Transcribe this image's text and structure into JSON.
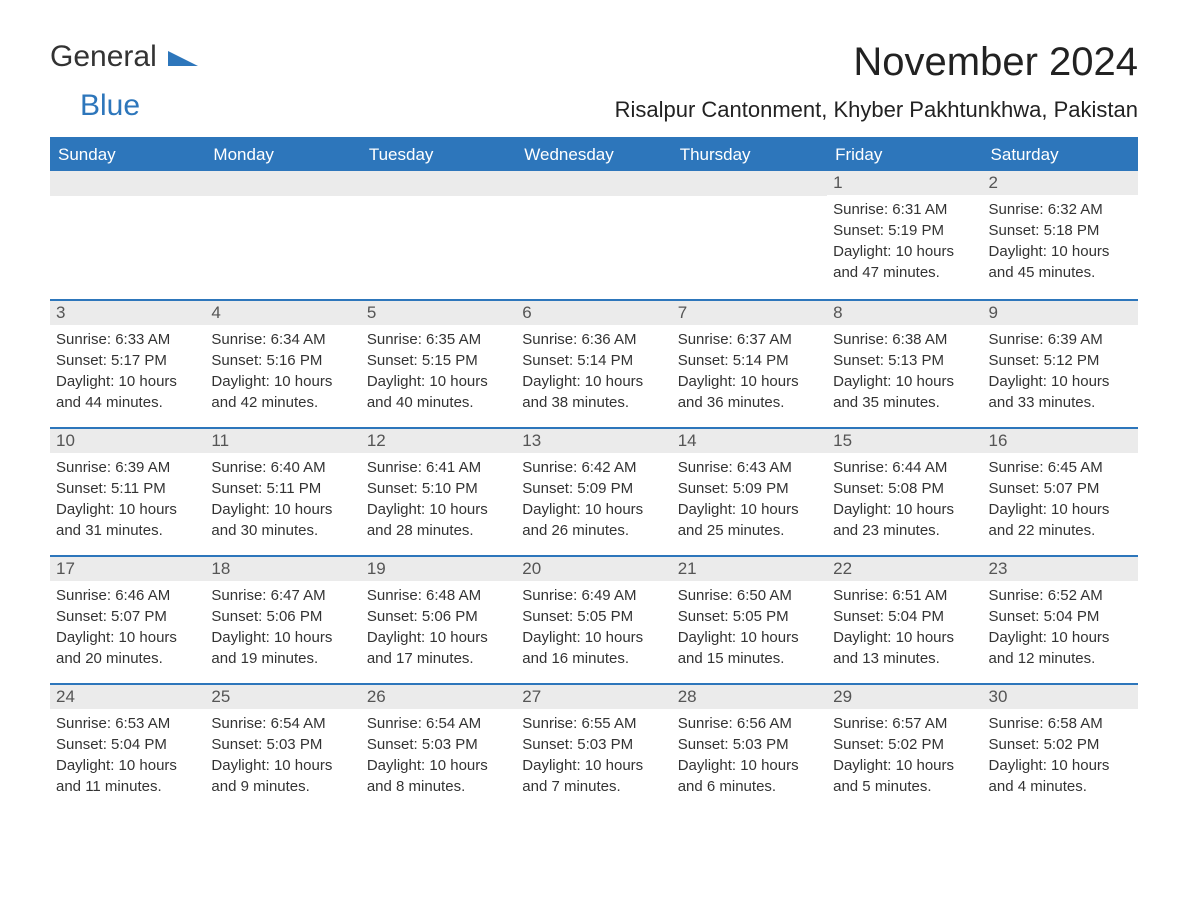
{
  "logo": {
    "text1": "General",
    "text2": "Blue",
    "shape_color": "#2d76bb"
  },
  "title": "November 2024",
  "location": "Risalpur Cantonment, Khyber Pakhtunkhwa, Pakistan",
  "colors": {
    "header_bg": "#2d76bb",
    "header_text": "#ffffff",
    "daynum_bg": "#ebebeb",
    "text": "#333333",
    "border": "#2d76bb"
  },
  "day_names": [
    "Sunday",
    "Monday",
    "Tuesday",
    "Wednesday",
    "Thursday",
    "Friday",
    "Saturday"
  ],
  "weeks": [
    [
      null,
      null,
      null,
      null,
      null,
      {
        "n": "1",
        "sunrise": "Sunrise: 6:31 AM",
        "sunset": "Sunset: 5:19 PM",
        "day1": "Daylight: 10 hours",
        "day2": "and 47 minutes."
      },
      {
        "n": "2",
        "sunrise": "Sunrise: 6:32 AM",
        "sunset": "Sunset: 5:18 PM",
        "day1": "Daylight: 10 hours",
        "day2": "and 45 minutes."
      }
    ],
    [
      {
        "n": "3",
        "sunrise": "Sunrise: 6:33 AM",
        "sunset": "Sunset: 5:17 PM",
        "day1": "Daylight: 10 hours",
        "day2": "and 44 minutes."
      },
      {
        "n": "4",
        "sunrise": "Sunrise: 6:34 AM",
        "sunset": "Sunset: 5:16 PM",
        "day1": "Daylight: 10 hours",
        "day2": "and 42 minutes."
      },
      {
        "n": "5",
        "sunrise": "Sunrise: 6:35 AM",
        "sunset": "Sunset: 5:15 PM",
        "day1": "Daylight: 10 hours",
        "day2": "and 40 minutes."
      },
      {
        "n": "6",
        "sunrise": "Sunrise: 6:36 AM",
        "sunset": "Sunset: 5:14 PM",
        "day1": "Daylight: 10 hours",
        "day2": "and 38 minutes."
      },
      {
        "n": "7",
        "sunrise": "Sunrise: 6:37 AM",
        "sunset": "Sunset: 5:14 PM",
        "day1": "Daylight: 10 hours",
        "day2": "and 36 minutes."
      },
      {
        "n": "8",
        "sunrise": "Sunrise: 6:38 AM",
        "sunset": "Sunset: 5:13 PM",
        "day1": "Daylight: 10 hours",
        "day2": "and 35 minutes."
      },
      {
        "n": "9",
        "sunrise": "Sunrise: 6:39 AM",
        "sunset": "Sunset: 5:12 PM",
        "day1": "Daylight: 10 hours",
        "day2": "and 33 minutes."
      }
    ],
    [
      {
        "n": "10",
        "sunrise": "Sunrise: 6:39 AM",
        "sunset": "Sunset: 5:11 PM",
        "day1": "Daylight: 10 hours",
        "day2": "and 31 minutes."
      },
      {
        "n": "11",
        "sunrise": "Sunrise: 6:40 AM",
        "sunset": "Sunset: 5:11 PM",
        "day1": "Daylight: 10 hours",
        "day2": "and 30 minutes."
      },
      {
        "n": "12",
        "sunrise": "Sunrise: 6:41 AM",
        "sunset": "Sunset: 5:10 PM",
        "day1": "Daylight: 10 hours",
        "day2": "and 28 minutes."
      },
      {
        "n": "13",
        "sunrise": "Sunrise: 6:42 AM",
        "sunset": "Sunset: 5:09 PM",
        "day1": "Daylight: 10 hours",
        "day2": "and 26 minutes."
      },
      {
        "n": "14",
        "sunrise": "Sunrise: 6:43 AM",
        "sunset": "Sunset: 5:09 PM",
        "day1": "Daylight: 10 hours",
        "day2": "and 25 minutes."
      },
      {
        "n": "15",
        "sunrise": "Sunrise: 6:44 AM",
        "sunset": "Sunset: 5:08 PM",
        "day1": "Daylight: 10 hours",
        "day2": "and 23 minutes."
      },
      {
        "n": "16",
        "sunrise": "Sunrise: 6:45 AM",
        "sunset": "Sunset: 5:07 PM",
        "day1": "Daylight: 10 hours",
        "day2": "and 22 minutes."
      }
    ],
    [
      {
        "n": "17",
        "sunrise": "Sunrise: 6:46 AM",
        "sunset": "Sunset: 5:07 PM",
        "day1": "Daylight: 10 hours",
        "day2": "and 20 minutes."
      },
      {
        "n": "18",
        "sunrise": "Sunrise: 6:47 AM",
        "sunset": "Sunset: 5:06 PM",
        "day1": "Daylight: 10 hours",
        "day2": "and 19 minutes."
      },
      {
        "n": "19",
        "sunrise": "Sunrise: 6:48 AM",
        "sunset": "Sunset: 5:06 PM",
        "day1": "Daylight: 10 hours",
        "day2": "and 17 minutes."
      },
      {
        "n": "20",
        "sunrise": "Sunrise: 6:49 AM",
        "sunset": "Sunset: 5:05 PM",
        "day1": "Daylight: 10 hours",
        "day2": "and 16 minutes."
      },
      {
        "n": "21",
        "sunrise": "Sunrise: 6:50 AM",
        "sunset": "Sunset: 5:05 PM",
        "day1": "Daylight: 10 hours",
        "day2": "and 15 minutes."
      },
      {
        "n": "22",
        "sunrise": "Sunrise: 6:51 AM",
        "sunset": "Sunset: 5:04 PM",
        "day1": "Daylight: 10 hours",
        "day2": "and 13 minutes."
      },
      {
        "n": "23",
        "sunrise": "Sunrise: 6:52 AM",
        "sunset": "Sunset: 5:04 PM",
        "day1": "Daylight: 10 hours",
        "day2": "and 12 minutes."
      }
    ],
    [
      {
        "n": "24",
        "sunrise": "Sunrise: 6:53 AM",
        "sunset": "Sunset: 5:04 PM",
        "day1": "Daylight: 10 hours",
        "day2": "and 11 minutes."
      },
      {
        "n": "25",
        "sunrise": "Sunrise: 6:54 AM",
        "sunset": "Sunset: 5:03 PM",
        "day1": "Daylight: 10 hours",
        "day2": "and 9 minutes."
      },
      {
        "n": "26",
        "sunrise": "Sunrise: 6:54 AM",
        "sunset": "Sunset: 5:03 PM",
        "day1": "Daylight: 10 hours",
        "day2": "and 8 minutes."
      },
      {
        "n": "27",
        "sunrise": "Sunrise: 6:55 AM",
        "sunset": "Sunset: 5:03 PM",
        "day1": "Daylight: 10 hours",
        "day2": "and 7 minutes."
      },
      {
        "n": "28",
        "sunrise": "Sunrise: 6:56 AM",
        "sunset": "Sunset: 5:03 PM",
        "day1": "Daylight: 10 hours",
        "day2": "and 6 minutes."
      },
      {
        "n": "29",
        "sunrise": "Sunrise: 6:57 AM",
        "sunset": "Sunset: 5:02 PM",
        "day1": "Daylight: 10 hours",
        "day2": "and 5 minutes."
      },
      {
        "n": "30",
        "sunrise": "Sunrise: 6:58 AM",
        "sunset": "Sunset: 5:02 PM",
        "day1": "Daylight: 10 hours",
        "day2": "and 4 minutes."
      }
    ]
  ]
}
